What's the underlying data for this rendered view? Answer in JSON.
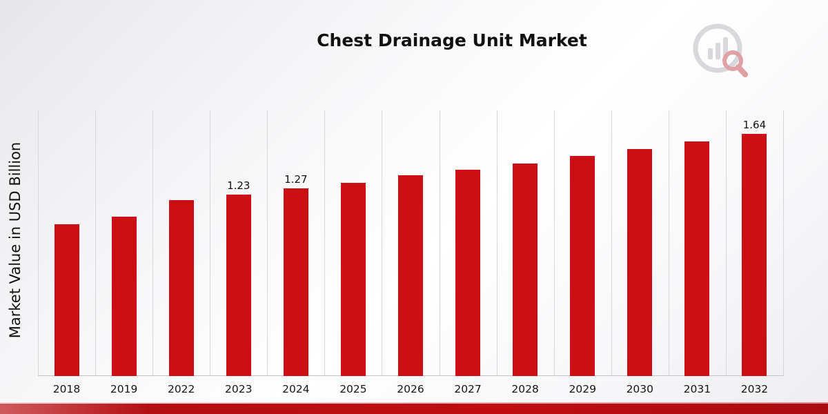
{
  "header": {
    "title": "Chest Drainage Unit Market"
  },
  "axes": {
    "ylabel": "Market Value in USD Billion"
  },
  "chart_data": {
    "type": "bar",
    "title": "Chest Drainage Unit Market",
    "ylabel": "Market Value in USD Billion",
    "xlabel": "",
    "categories": [
      "2018",
      "2019",
      "2022",
      "2023",
      "2024",
      "2025",
      "2026",
      "2027",
      "2028",
      "2029",
      "2030",
      "2031",
      "2032"
    ],
    "values": [
      1.03,
      1.08,
      1.19,
      1.23,
      1.27,
      1.31,
      1.36,
      1.4,
      1.44,
      1.49,
      1.54,
      1.59,
      1.64
    ],
    "data_labels": [
      "",
      "",
      "",
      "1.23",
      "1.27",
      "",
      "",
      "",
      "",
      "",
      "",
      "",
      "1.64"
    ],
    "ylim": [
      0,
      1.8
    ],
    "bar_color": "#cc0f15",
    "grid": "vertical",
    "legend_position": "none"
  },
  "branding": {
    "logo_name": "market-research-logo",
    "accent_color": "#c00d12"
  }
}
